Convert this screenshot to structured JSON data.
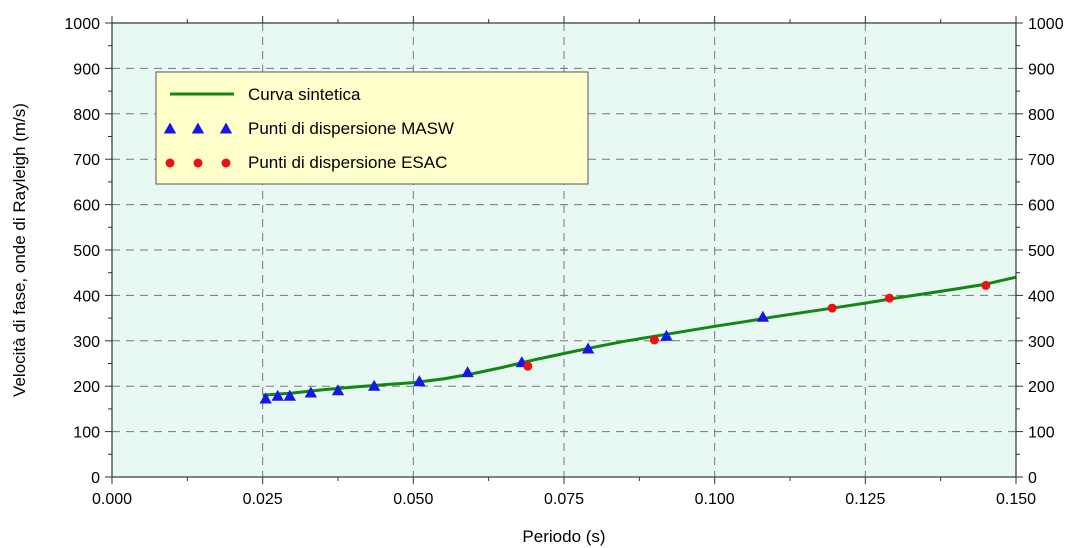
{
  "chart_data": {
    "type": "scatter",
    "title": "",
    "xlabel": "Periodo (s)",
    "ylabel": "Velocità di fase, onde di Rayleigh (m/s)",
    "xlim": [
      0,
      0.15
    ],
    "ylim": [
      0,
      1000
    ],
    "x_ticks": [
      "0.000",
      "0.025",
      "0.050",
      "0.075",
      "0.100",
      "0.125",
      "0.150"
    ],
    "y_ticks": [
      "0",
      "100",
      "200",
      "300",
      "400",
      "500",
      "600",
      "700",
      "800",
      "900",
      "1000"
    ],
    "grid": true,
    "plot_background": "#e8f8f3",
    "legend": {
      "placement": "top-left",
      "background": "#ffffcc",
      "entries": [
        {
          "label": "Curva sintetica",
          "marker": "line",
          "color": "#118811"
        },
        {
          "label": "Punti di dispersione MASW",
          "marker": "triangle",
          "color": "#1515ee"
        },
        {
          "label": "Punti di dispersione ESAC",
          "marker": "circle",
          "color": "#ee1111"
        }
      ]
    },
    "series": [
      {
        "name": "Curva sintetica",
        "kind": "line",
        "color": "#118811",
        "points": [
          [
            0.025,
            180
          ],
          [
            0.03,
            185
          ],
          [
            0.035,
            192
          ],
          [
            0.04,
            198
          ],
          [
            0.045,
            203
          ],
          [
            0.05,
            208
          ],
          [
            0.055,
            216
          ],
          [
            0.06,
            228
          ],
          [
            0.065,
            242
          ],
          [
            0.07,
            258
          ],
          [
            0.075,
            272
          ],
          [
            0.08,
            286
          ],
          [
            0.085,
            299
          ],
          [
            0.09,
            310
          ],
          [
            0.095,
            321
          ],
          [
            0.1,
            332
          ],
          [
            0.105,
            342
          ],
          [
            0.11,
            353
          ],
          [
            0.115,
            363
          ],
          [
            0.12,
            373
          ],
          [
            0.125,
            383
          ],
          [
            0.13,
            394
          ],
          [
            0.135,
            404
          ],
          [
            0.14,
            414
          ],
          [
            0.145,
            425
          ],
          [
            0.15,
            440
          ]
        ]
      },
      {
        "name": "Punti di dispersione MASW",
        "kind": "triangle",
        "color": "#1515ee",
        "points": [
          [
            0.0255,
            172
          ],
          [
            0.0275,
            178
          ],
          [
            0.0295,
            178
          ],
          [
            0.033,
            185
          ],
          [
            0.0375,
            190
          ],
          [
            0.0435,
            200
          ],
          [
            0.051,
            210
          ],
          [
            0.059,
            230
          ],
          [
            0.068,
            252
          ],
          [
            0.079,
            282
          ],
          [
            0.092,
            310
          ],
          [
            0.108,
            352
          ]
        ]
      },
      {
        "name": "Punti di dispersione ESAC",
        "kind": "circle",
        "color": "#ee1111",
        "points": [
          [
            0.069,
            244
          ],
          [
            0.09,
            302
          ],
          [
            0.1195,
            372
          ],
          [
            0.129,
            394
          ],
          [
            0.145,
            422
          ]
        ]
      }
    ]
  }
}
